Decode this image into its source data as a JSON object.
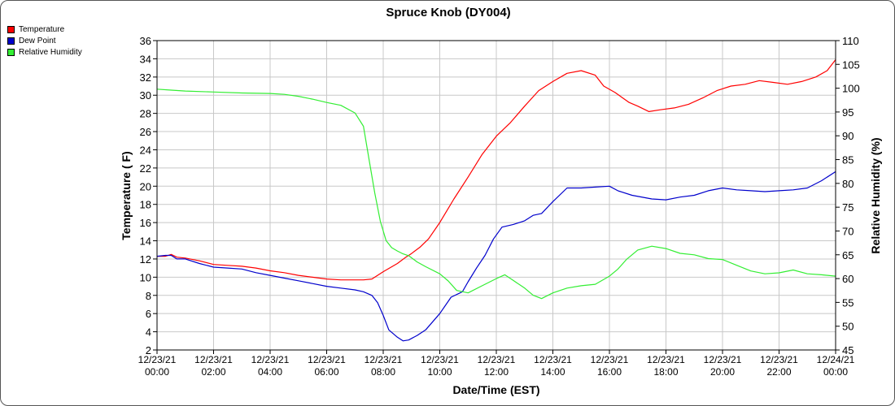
{
  "chart_data": {
    "type": "line",
    "title": "Spruce Knob (DY004)",
    "xlabel": "Date/Time (EST)",
    "ylabel": "Temperature ( F)",
    "y2label": "Relative Humidity (%)",
    "xlim": [
      0,
      24
    ],
    "ylim": [
      2,
      36
    ],
    "y2lim": [
      45,
      110
    ],
    "yticks": [
      2,
      4,
      6,
      8,
      10,
      12,
      14,
      16,
      18,
      20,
      22,
      24,
      26,
      28,
      30,
      32,
      34,
      36
    ],
    "y2ticks": [
      45,
      50,
      55,
      60,
      65,
      70,
      75,
      80,
      85,
      90,
      95,
      100,
      105,
      110
    ],
    "xticks": [
      {
        "x": 0,
        "date": "12/23/21",
        "time": "00:00"
      },
      {
        "x": 2,
        "date": "12/23/21",
        "time": "02:00"
      },
      {
        "x": 4,
        "date": "12/23/21",
        "time": "04:00"
      },
      {
        "x": 6,
        "date": "12/23/21",
        "time": "06:00"
      },
      {
        "x": 8,
        "date": "12/23/21",
        "time": "08:00"
      },
      {
        "x": 10,
        "date": "12/23/21",
        "time": "10:00"
      },
      {
        "x": 12,
        "date": "12/23/21",
        "time": "12:00"
      },
      {
        "x": 14,
        "date": "12/23/21",
        "time": "14:00"
      },
      {
        "x": 16,
        "date": "12/23/21",
        "time": "16:00"
      },
      {
        "x": 18,
        "date": "12/23/21",
        "time": "18:00"
      },
      {
        "x": 20,
        "date": "12/23/21",
        "time": "20:00"
      },
      {
        "x": 22,
        "date": "12/23/21",
        "time": "22:00"
      },
      {
        "x": 24,
        "date": "12/24/21",
        "time": "00:00"
      }
    ],
    "grid": true,
    "legend_position": "top-left",
    "series": [
      {
        "name": "Temperature",
        "color": "#ff0000",
        "axis": "left",
        "points": [
          [
            0,
            12.3
          ],
          [
            0.3,
            12.3
          ],
          [
            0.5,
            12.5
          ],
          [
            0.7,
            12.2
          ],
          [
            1,
            12.1
          ],
          [
            1.5,
            11.8
          ],
          [
            2,
            11.4
          ],
          [
            2.5,
            11.3
          ],
          [
            3,
            11.2
          ],
          [
            3.5,
            11
          ],
          [
            4,
            10.7
          ],
          [
            4.5,
            10.5
          ],
          [
            5,
            10.2
          ],
          [
            5.5,
            10
          ],
          [
            6,
            9.8
          ],
          [
            6.5,
            9.7
          ],
          [
            7,
            9.7
          ],
          [
            7.3,
            9.7
          ],
          [
            7.6,
            9.8
          ],
          [
            8,
            10.6
          ],
          [
            8.5,
            11.5
          ],
          [
            8.8,
            12.2
          ],
          [
            9,
            12.6
          ],
          [
            9.3,
            13.3
          ],
          [
            9.6,
            14.2
          ],
          [
            10,
            16
          ],
          [
            10.5,
            18.6
          ],
          [
            11,
            21
          ],
          [
            11.5,
            23.5
          ],
          [
            12,
            25.5
          ],
          [
            12.5,
            27
          ],
          [
            13,
            28.8
          ],
          [
            13.5,
            30.5
          ],
          [
            14,
            31.5
          ],
          [
            14.5,
            32.4
          ],
          [
            15,
            32.7
          ],
          [
            15.5,
            32.2
          ],
          [
            15.8,
            31
          ],
          [
            16.2,
            30.3
          ],
          [
            16.7,
            29.2
          ],
          [
            17,
            28.8
          ],
          [
            17.4,
            28.2
          ],
          [
            17.8,
            28.4
          ],
          [
            18.3,
            28.6
          ],
          [
            18.8,
            29
          ],
          [
            19.3,
            29.7
          ],
          [
            19.8,
            30.5
          ],
          [
            20.3,
            31
          ],
          [
            20.8,
            31.2
          ],
          [
            21.3,
            31.6
          ],
          [
            21.8,
            31.4
          ],
          [
            22.3,
            31.2
          ],
          [
            22.8,
            31.5
          ],
          [
            23.3,
            32
          ],
          [
            23.7,
            32.7
          ],
          [
            24,
            33.9
          ]
        ]
      },
      {
        "name": "Dew Point",
        "color": "#0000cc",
        "axis": "left",
        "points": [
          [
            0,
            12.3
          ],
          [
            0.3,
            12.4
          ],
          [
            0.5,
            12.4
          ],
          [
            0.7,
            12
          ],
          [
            1,
            12
          ],
          [
            1.5,
            11.5
          ],
          [
            2,
            11.1
          ],
          [
            2.5,
            11
          ],
          [
            3,
            10.9
          ],
          [
            3.5,
            10.5
          ],
          [
            4,
            10.2
          ],
          [
            4.5,
            9.9
          ],
          [
            5,
            9.6
          ],
          [
            5.5,
            9.3
          ],
          [
            6,
            9
          ],
          [
            6.5,
            8.8
          ],
          [
            7,
            8.6
          ],
          [
            7.3,
            8.4
          ],
          [
            7.6,
            8
          ],
          [
            7.8,
            7.2
          ],
          [
            8,
            5.8
          ],
          [
            8.2,
            4.2
          ],
          [
            8.5,
            3.4
          ],
          [
            8.7,
            3
          ],
          [
            8.9,
            3.1
          ],
          [
            9.2,
            3.6
          ],
          [
            9.5,
            4.2
          ],
          [
            10,
            6
          ],
          [
            10.4,
            7.8
          ],
          [
            10.8,
            8.4
          ],
          [
            11,
            9.5
          ],
          [
            11.3,
            11
          ],
          [
            11.6,
            12.4
          ],
          [
            11.9,
            14.2
          ],
          [
            12.2,
            15.5
          ],
          [
            12.6,
            15.8
          ],
          [
            13,
            16.2
          ],
          [
            13.3,
            16.8
          ],
          [
            13.6,
            17
          ],
          [
            14,
            18.3
          ],
          [
            14.5,
            19.8
          ],
          [
            15,
            19.8
          ],
          [
            15.5,
            19.9
          ],
          [
            16,
            20
          ],
          [
            16.3,
            19.5
          ],
          [
            16.8,
            19
          ],
          [
            17.5,
            18.6
          ],
          [
            18,
            18.5
          ],
          [
            18.5,
            18.8
          ],
          [
            19,
            19
          ],
          [
            19.5,
            19.5
          ],
          [
            20,
            19.8
          ],
          [
            20.5,
            19.6
          ],
          [
            21,
            19.5
          ],
          [
            21.5,
            19.4
          ],
          [
            22,
            19.5
          ],
          [
            22.5,
            19.6
          ],
          [
            23,
            19.8
          ],
          [
            23.5,
            20.6
          ],
          [
            24,
            21.6
          ]
        ]
      },
      {
        "name": "Relative Humidity",
        "color": "#33ee33",
        "axis": "right",
        "points": [
          [
            0,
            99.8
          ],
          [
            0.5,
            99.6
          ],
          [
            1,
            99.4
          ],
          [
            2,
            99.2
          ],
          [
            3,
            99
          ],
          [
            4,
            98.9
          ],
          [
            4.5,
            98.7
          ],
          [
            5,
            98.3
          ],
          [
            5.5,
            97.7
          ],
          [
            6,
            97
          ],
          [
            6.5,
            96.4
          ],
          [
            7,
            94.8
          ],
          [
            7.3,
            92
          ],
          [
            7.5,
            85
          ],
          [
            7.7,
            78
          ],
          [
            7.9,
            72
          ],
          [
            8.1,
            68
          ],
          [
            8.3,
            66.5
          ],
          [
            8.5,
            65.8
          ],
          [
            8.7,
            65.2
          ],
          [
            8.9,
            64.8
          ],
          [
            9.2,
            63.5
          ],
          [
            9.5,
            62.5
          ],
          [
            10,
            61
          ],
          [
            10.3,
            59.5
          ],
          [
            10.6,
            57.5
          ],
          [
            11,
            57
          ],
          [
            11.5,
            58.5
          ],
          [
            12,
            60
          ],
          [
            12.3,
            60.8
          ],
          [
            12.6,
            59.6
          ],
          [
            13,
            58
          ],
          [
            13.3,
            56.5
          ],
          [
            13.6,
            55.8
          ],
          [
            14,
            57
          ],
          [
            14.5,
            58
          ],
          [
            15,
            58.5
          ],
          [
            15.5,
            58.8
          ],
          [
            16,
            60.5
          ],
          [
            16.3,
            62
          ],
          [
            16.6,
            64
          ],
          [
            17,
            66
          ],
          [
            17.5,
            66.8
          ],
          [
            18,
            66.3
          ],
          [
            18.5,
            65.3
          ],
          [
            19,
            65
          ],
          [
            19.5,
            64.2
          ],
          [
            20,
            64
          ],
          [
            20.5,
            62.8
          ],
          [
            21,
            61.6
          ],
          [
            21.5,
            61
          ],
          [
            22,
            61.2
          ],
          [
            22.5,
            61.8
          ],
          [
            23,
            61
          ],
          [
            23.5,
            60.8
          ],
          [
            24,
            60.5
          ]
        ]
      }
    ]
  }
}
